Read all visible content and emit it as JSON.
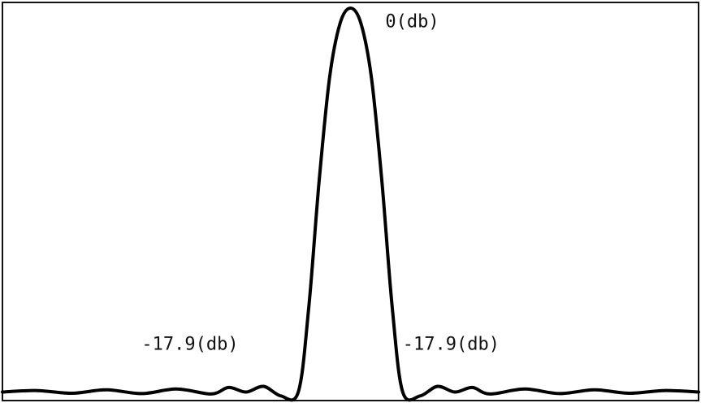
{
  "chart_data": {
    "type": "line",
    "title": "",
    "xlabel": "",
    "ylabel": "",
    "xlim": [
      -1,
      1
    ],
    "ylim": [
      -0.02,
      1.0
    ],
    "grid": false,
    "legend": "none",
    "line_color": "#000000",
    "series": [
      {
        "x": [
          -1.0,
          -0.9,
          -0.8,
          -0.7,
          -0.6,
          -0.5,
          -0.4,
          -0.35,
          -0.3,
          -0.25,
          -0.2,
          -0.15,
          -0.12,
          -0.09,
          -0.06,
          -0.03,
          0.0,
          0.03,
          0.06,
          0.09,
          0.12,
          0.15,
          0.2,
          0.25,
          0.3,
          0.35,
          0.4,
          0.5,
          0.6,
          0.7,
          0.8,
          0.9,
          1.0
        ],
        "values": [
          0.0,
          0.004,
          -0.003,
          0.006,
          -0.004,
          0.008,
          -0.005,
          0.012,
          0.0,
          0.015,
          -0.01,
          0.0,
          0.22,
          0.55,
          0.82,
          0.96,
          1.0,
          0.96,
          0.82,
          0.55,
          0.22,
          0.0,
          -0.01,
          0.015,
          0.0,
          0.012,
          -0.005,
          0.008,
          -0.004,
          0.006,
          -0.003,
          0.004,
          0.0
        ]
      }
    ],
    "annotations": [
      {
        "text": "0(db)",
        "x": 0.1,
        "y": 0.95
      },
      {
        "text": "-17.9(db)",
        "x": -0.6,
        "y": 0.11
      },
      {
        "text": "-17.9(db)",
        "x": 0.15,
        "y": 0.11
      }
    ]
  }
}
